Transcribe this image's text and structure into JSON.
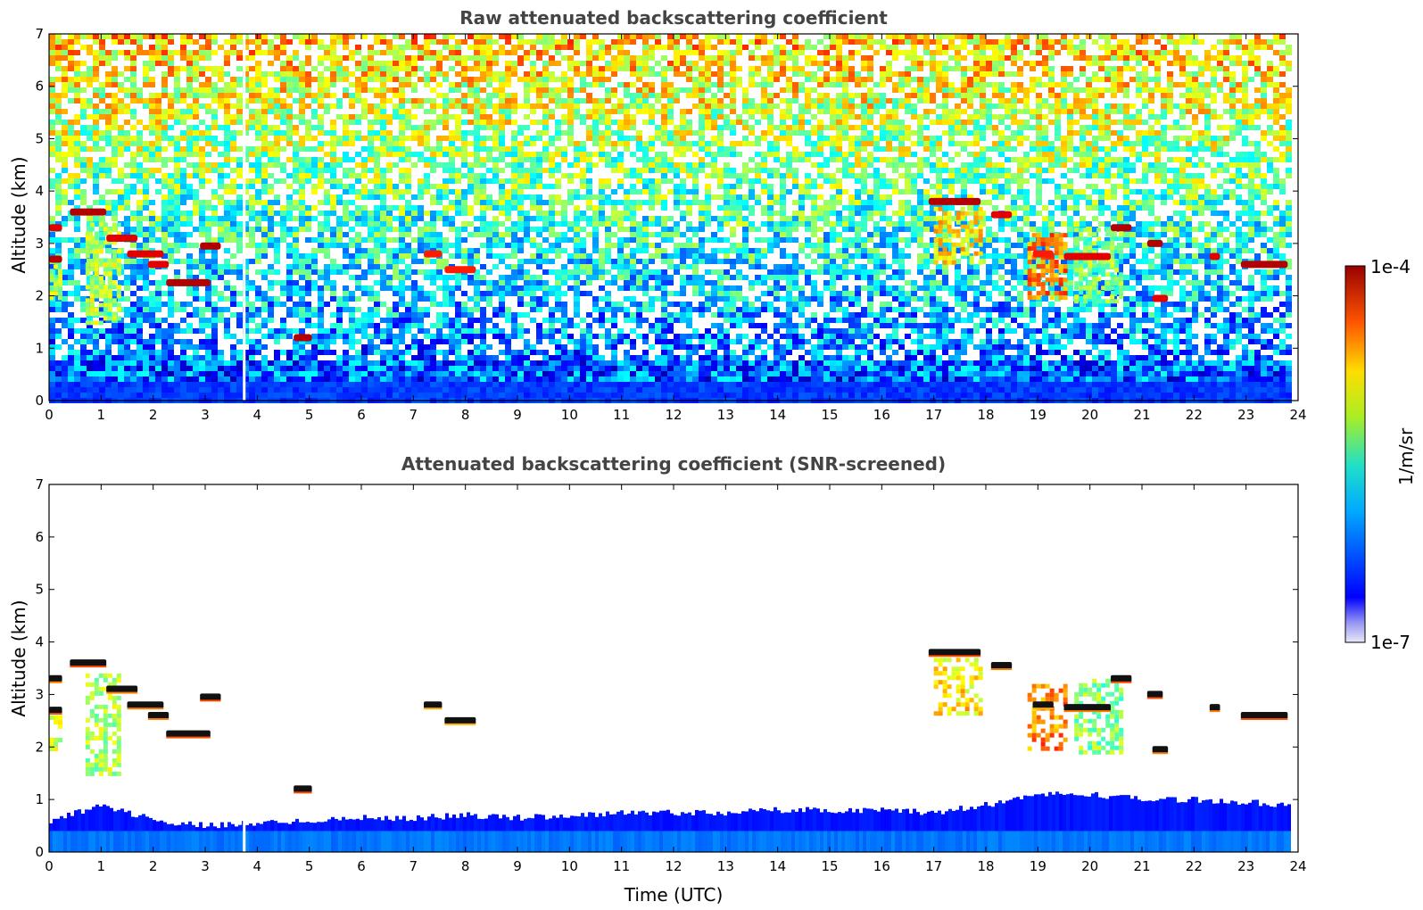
{
  "chart_data": [
    {
      "type": "heatmap",
      "title": "Raw attenuated backscattering coefficient",
      "xlabel": "",
      "ylabel": "Altitude (km)",
      "xlim": [
        0,
        24
      ],
      "ylim": [
        0,
        7
      ],
      "x_ticks": [
        "0",
        "1",
        "2",
        "3",
        "4",
        "5",
        "6",
        "7",
        "8",
        "9",
        "10",
        "11",
        "12",
        "13",
        "14",
        "15",
        "16",
        "17",
        "18",
        "19",
        "20",
        "21",
        "22",
        "23",
        "24"
      ],
      "y_ticks": [
        "0",
        "1",
        "2",
        "3",
        "4",
        "5",
        "6",
        "7"
      ],
      "colorscale": "jet",
      "screened": false,
      "data_gap_utc": 3.75,
      "data_end_utc": 23.8,
      "cloud_layers": [
        {
          "x_start": 0.0,
          "x_end": 0.25,
          "alt": 2.7,
          "intensity": 0.95
        },
        {
          "x_start": 0.0,
          "x_end": 0.25,
          "alt": 3.3,
          "intensity": 0.9
        },
        {
          "x_start": 0.4,
          "x_end": 1.1,
          "alt": 3.6,
          "intensity": 0.95
        },
        {
          "x_start": 1.1,
          "x_end": 1.7,
          "alt": 3.1,
          "intensity": 0.9
        },
        {
          "x_start": 1.5,
          "x_end": 2.2,
          "alt": 2.8,
          "intensity": 0.9
        },
        {
          "x_start": 1.9,
          "x_end": 2.3,
          "alt": 2.6,
          "intensity": 0.9
        },
        {
          "x_start": 2.25,
          "x_end": 3.1,
          "alt": 2.25,
          "intensity": 0.95
        },
        {
          "x_start": 2.9,
          "x_end": 3.3,
          "alt": 2.95,
          "intensity": 0.95
        },
        {
          "x_start": 4.7,
          "x_end": 5.05,
          "alt": 1.2,
          "intensity": 0.95
        },
        {
          "x_start": 7.2,
          "x_end": 7.55,
          "alt": 2.8,
          "intensity": 0.85
        },
        {
          "x_start": 7.6,
          "x_end": 8.2,
          "alt": 2.5,
          "intensity": 0.85
        },
        {
          "x_start": 16.9,
          "x_end": 17.9,
          "alt": 3.8,
          "intensity": 0.95
        },
        {
          "x_start": 18.1,
          "x_end": 18.5,
          "alt": 3.55,
          "intensity": 0.9
        },
        {
          "x_start": 18.9,
          "x_end": 19.3,
          "alt": 2.8,
          "intensity": 0.85
        },
        {
          "x_start": 19.5,
          "x_end": 20.4,
          "alt": 2.75,
          "intensity": 0.9
        },
        {
          "x_start": 20.4,
          "x_end": 20.8,
          "alt": 3.3,
          "intensity": 0.95
        },
        {
          "x_start": 21.1,
          "x_end": 21.4,
          "alt": 3.0,
          "intensity": 0.95
        },
        {
          "x_start": 21.2,
          "x_end": 21.5,
          "alt": 1.95,
          "intensity": 0.9
        },
        {
          "x_start": 22.3,
          "x_end": 22.5,
          "alt": 2.75,
          "intensity": 0.9
        },
        {
          "x_start": 22.9,
          "x_end": 23.8,
          "alt": 2.6,
          "intensity": 0.95
        }
      ],
      "precipitation_plumes": [
        {
          "x_start": 0.0,
          "x_end": 0.2,
          "alt_top": 2.6,
          "alt_bottom": 2.0,
          "intensity": 0.55
        },
        {
          "x_start": 0.7,
          "x_end": 1.3,
          "alt_top": 3.4,
          "alt_bottom": 1.5,
          "intensity": 0.55
        },
        {
          "x_start": 17.0,
          "x_end": 17.9,
          "alt_top": 3.7,
          "alt_bottom": 2.6,
          "intensity": 0.65
        },
        {
          "x_start": 18.8,
          "x_end": 19.5,
          "alt_top": 3.2,
          "alt_bottom": 2.0,
          "intensity": 0.75
        },
        {
          "x_start": 19.7,
          "x_end": 20.6,
          "alt_top": 3.3,
          "alt_bottom": 1.9,
          "intensity": 0.5
        }
      ]
    },
    {
      "type": "heatmap",
      "title": "Attenuated backscattering coefficient (SNR-screened)",
      "xlabel": "Time (UTC)",
      "ylabel": "Altitude (km)",
      "xlim": [
        0,
        24
      ],
      "ylim": [
        0,
        7
      ],
      "x_ticks": [
        "0",
        "1",
        "2",
        "3",
        "4",
        "5",
        "6",
        "7",
        "8",
        "9",
        "10",
        "11",
        "12",
        "13",
        "14",
        "15",
        "16",
        "17",
        "18",
        "19",
        "20",
        "21",
        "22",
        "23",
        "24"
      ],
      "y_ticks": [
        "0",
        "1",
        "2",
        "3",
        "4",
        "5",
        "6",
        "7"
      ],
      "colorscale": "jet",
      "screened": true,
      "boundary_layer_top_km": [
        [
          0,
          0.6
        ],
        [
          1,
          0.9
        ],
        [
          2,
          0.6
        ],
        [
          3,
          0.5
        ],
        [
          4,
          0.55
        ],
        [
          5,
          0.6
        ],
        [
          6,
          0.65
        ],
        [
          7,
          0.65
        ],
        [
          8,
          0.7
        ],
        [
          9,
          0.65
        ],
        [
          10,
          0.7
        ],
        [
          11,
          0.75
        ],
        [
          12,
          0.75
        ],
        [
          13,
          0.75
        ],
        [
          14,
          0.8
        ],
        [
          15,
          0.8
        ],
        [
          16,
          0.8
        ],
        [
          17,
          0.75
        ],
        [
          18,
          0.9
        ],
        [
          19,
          1.1
        ],
        [
          20,
          1.1
        ],
        [
          21,
          1.0
        ],
        [
          22,
          1.0
        ],
        [
          23,
          0.95
        ],
        [
          23.8,
          0.9
        ]
      ]
    }
  ],
  "colorbar": {
    "label": "1/m/sr",
    "max_label": "1e-4",
    "min_label": "1e-7",
    "colormap": "jet"
  }
}
